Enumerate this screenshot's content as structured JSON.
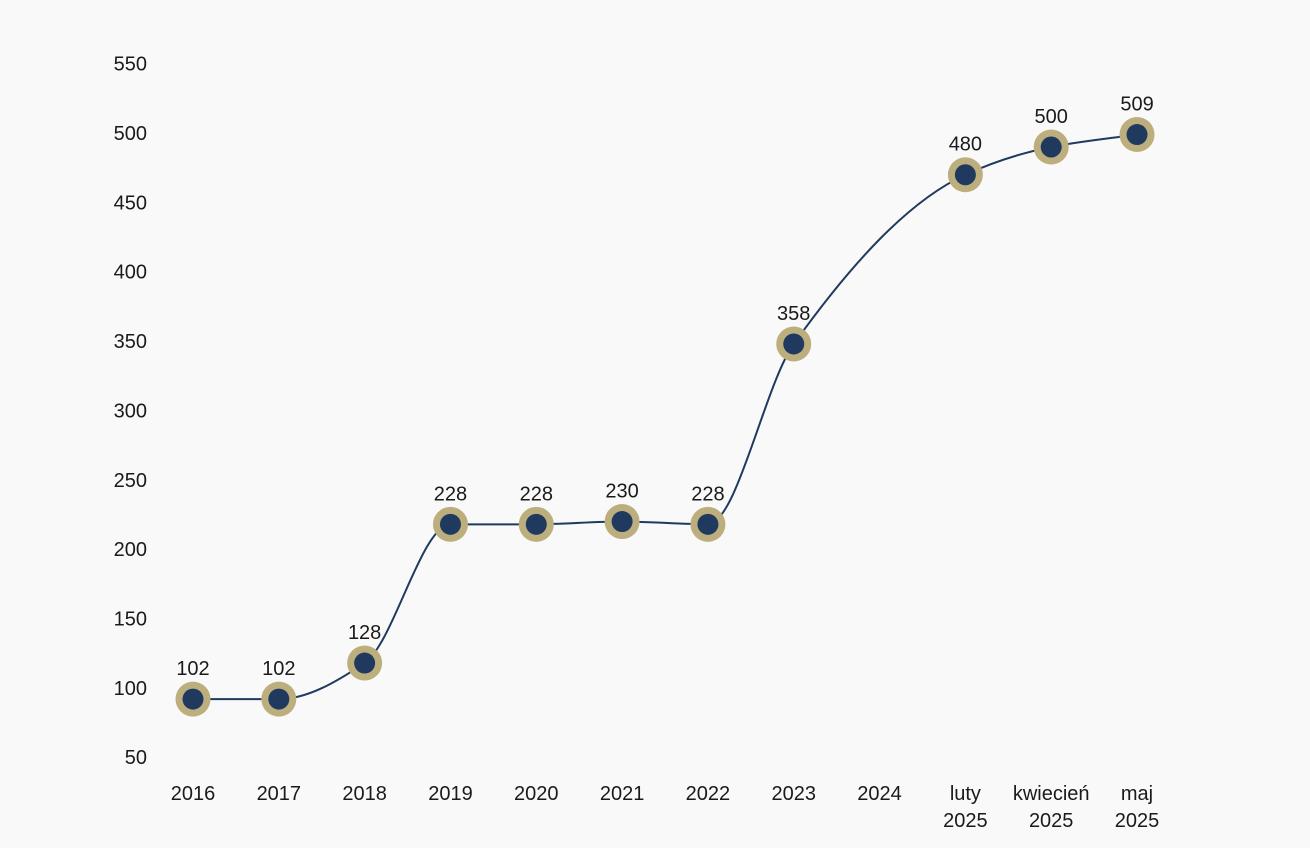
{
  "chart_data": {
    "type": "line",
    "categories": [
      "2016",
      "2017",
      "2018",
      "2019",
      "2020",
      "2021",
      "2022",
      "2023",
      "2024",
      "luty 2025",
      "kwiecień 2025",
      "maj 2025"
    ],
    "values": [
      102,
      102,
      128,
      228,
      228,
      230,
      228,
      358,
      null,
      480,
      500,
      509
    ],
    "data_labels": [
      "102",
      "102",
      "128",
      "228",
      "228",
      "230",
      "228",
      "358",
      "",
      "480",
      "500",
      "509"
    ],
    "title": "",
    "xlabel": "",
    "ylabel": "",
    "ylim": [
      50,
      550
    ],
    "yticks": [
      50,
      100,
      150,
      200,
      250,
      300,
      350,
      400,
      450,
      500,
      550
    ],
    "grid": false,
    "legend": false,
    "smooth": true,
    "colors": {
      "line": "#1f3a5e",
      "marker_fill": "#1f3a5e",
      "marker_ring": "#bdae7e",
      "text": "#1a1a1a",
      "background": "#f9f9f9"
    }
  }
}
